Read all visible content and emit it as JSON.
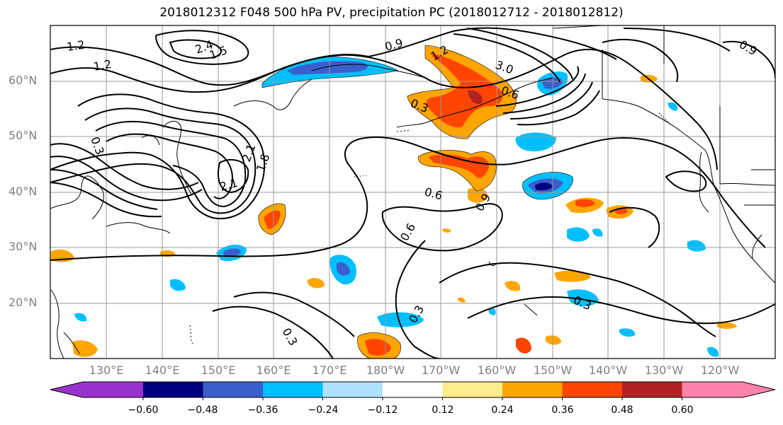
{
  "title": "2018012312 F048 500 hPa PV, precipitation PC (2018012712 - 2018012812)",
  "map": {
    "lat_labels": [
      "60°N",
      "50°N",
      "40°N",
      "30°N",
      "20°N"
    ],
    "lon_labels": [
      "130°E",
      "140°E",
      "150°E",
      "160°E",
      "170°E",
      "180°W",
      "170°W",
      "160°W",
      "150°W",
      "140°W",
      "130°W",
      "120°W"
    ],
    "contour_labels": [
      {
        "text": "1.2"
      },
      {
        "text": "1.2"
      },
      {
        "text": "2.4"
      },
      {
        "text": "1.5"
      },
      {
        "text": "0.9"
      },
      {
        "text": "1.2"
      },
      {
        "text": "3.0"
      },
      {
        "text": "0.6"
      },
      {
        "text": "0.3"
      },
      {
        "text": "2.1"
      },
      {
        "text": "1.8"
      },
      {
        "text": "2.1"
      },
      {
        "text": "0.6"
      },
      {
        "text": "0.9"
      },
      {
        "text": "0.6"
      },
      {
        "text": "0.3"
      },
      {
        "text": "0.3"
      },
      {
        "text": "0.3"
      },
      {
        "text": "0.9"
      },
      {
        "text": "0.3"
      }
    ]
  },
  "colorbar": {
    "colors": [
      "#9932cc",
      "#000080",
      "#3a5fcd",
      "#00bfff",
      "#b0e2ff",
      "#ffffff",
      "#ffec8b",
      "#ffa500",
      "#ff4500",
      "#b22222",
      "#ff82ab"
    ],
    "tick_labels": [
      "−0.60",
      "−0.48",
      "−0.36",
      "−0.24",
      "−0.12",
      "0.12",
      "0.24",
      "0.36",
      "0.48",
      "0.60"
    ]
  }
}
